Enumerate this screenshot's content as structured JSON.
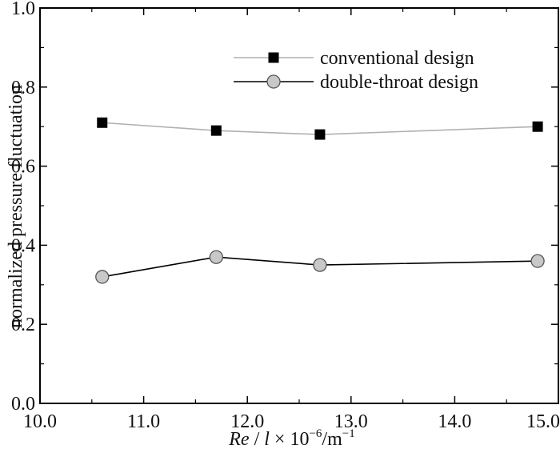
{
  "chart_data": {
    "type": "line",
    "xlabel": {
      "prefix": "Re",
      "sep": " / ",
      "var": "l",
      "mid": " × 10",
      "exp1": "−6",
      "unit": "/m",
      "exp2": "−1"
    },
    "ylabel": "normalized pressure fluctuation",
    "xlim": [
      10.0,
      15.0
    ],
    "ylim": [
      0.0,
      1.0
    ],
    "xticks": [
      "10.0",
      "11.0",
      "12.0",
      "13.0",
      "14.0",
      "15.0"
    ],
    "yticks": [
      "0.0",
      "0.2",
      "0.4",
      "0.6",
      "0.8",
      "1.0"
    ],
    "legend_position": "top-right",
    "grid": false,
    "series": [
      {
        "name": "conventional design",
        "marker": "square",
        "line_color": "#b0b0b0",
        "marker_fill": "#000000",
        "x": [
          10.6,
          11.7,
          12.7,
          14.8
        ],
        "y": [
          0.71,
          0.69,
          0.68,
          0.7
        ]
      },
      {
        "name": "double-throat design",
        "marker": "circle",
        "line_color": "#000000",
        "marker_fill": "#c8c8c8",
        "x": [
          10.6,
          11.7,
          12.7,
          14.8
        ],
        "y": [
          0.32,
          0.37,
          0.35,
          0.36
        ]
      }
    ]
  }
}
